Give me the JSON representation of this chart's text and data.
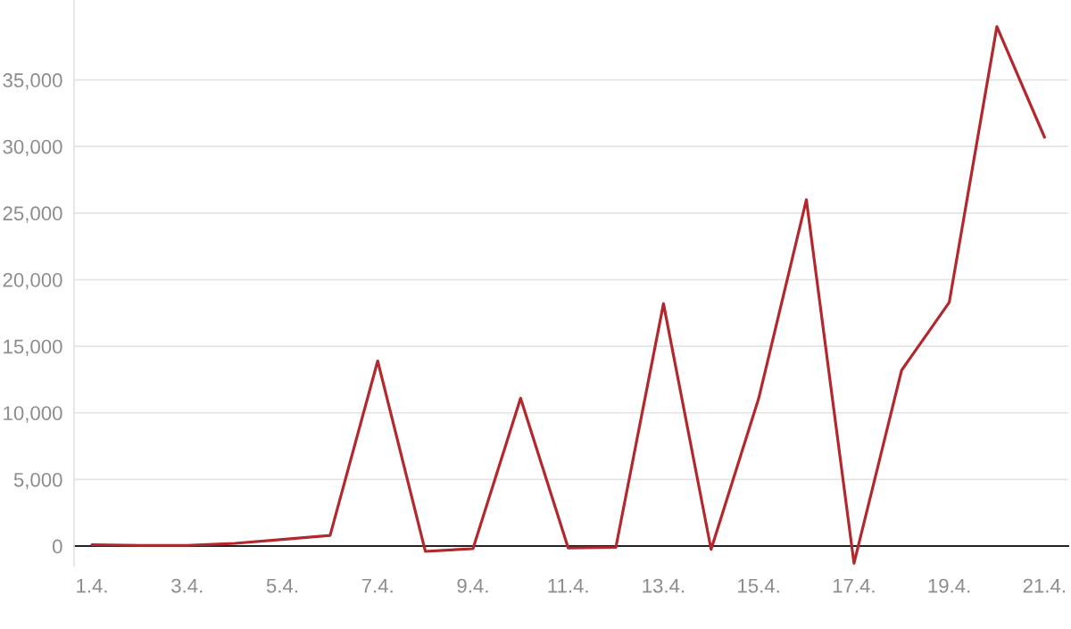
{
  "chart_data": {
    "type": "line",
    "categories": [
      "1.4.",
      null,
      "3.4.",
      null,
      "5.4.",
      null,
      "7.4.",
      null,
      "9.4.",
      null,
      "11.4.",
      null,
      "13.4.",
      null,
      "15.4.",
      null,
      "17.4.",
      null,
      "19.4.",
      null,
      "21.4."
    ],
    "values": [
      100,
      50,
      50,
      200,
      500,
      800,
      13900,
      -400,
      -200,
      11100,
      -150,
      -100,
      18200,
      -250,
      11100,
      26000,
      -1300,
      13200,
      18300,
      39000,
      30700
    ],
    "color": "#b3282d",
    "ylim": [
      -1500,
      41000
    ],
    "yticks": [
      0,
      {
        "value": 5000,
        "label": "5,000"
      },
      {
        "value": 10000,
        "label": "10,000"
      },
      {
        "value": 15000,
        "label": "15,000"
      },
      {
        "value": 20000,
        "label": "20,000"
      },
      {
        "value": 25000,
        "label": "25,000"
      },
      {
        "value": 30000,
        "label": "30,000"
      },
      {
        "value": 35000,
        "label": "35,000"
      }
    ],
    "grid": "y",
    "line_style": "solid"
  }
}
